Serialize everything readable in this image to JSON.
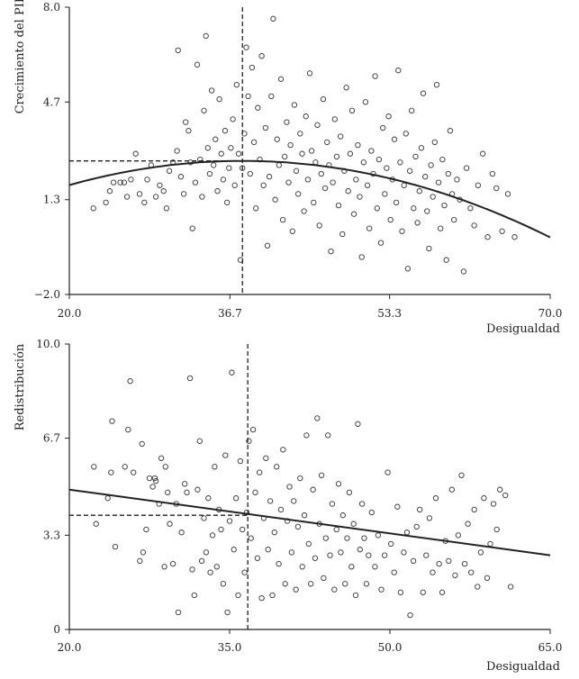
{
  "chart_data": [
    {
      "type": "scatter",
      "xlabel": "Desigualdad",
      "ylabel": "Crecimiento del PIB",
      "xlim": [
        20.0,
        70.0
      ],
      "ylim": [
        -2.0,
        8.0
      ],
      "xticks": [
        20.0,
        36.7,
        53.3,
        70.0
      ],
      "xtick_labels": [
        "20.0",
        "36.7",
        "53.3",
        "70.0"
      ],
      "yticks": [
        -2.0,
        1.3,
        4.7,
        8.0
      ],
      "ytick_labels": [
        "−2.0",
        "1.3",
        "4.7",
        "8.0"
      ],
      "fit": {
        "kind": "quadratic",
        "peak_x": 38.0,
        "peak_y": 2.65,
        "curvature": -0.0026
      },
      "reference": {
        "x": 38.0,
        "y": 2.65
      },
      "points": [
        [
          22.5,
          1.0
        ],
        [
          23.8,
          1.2
        ],
        [
          24.2,
          1.6
        ],
        [
          24.6,
          1.9
        ],
        [
          25.3,
          1.9
        ],
        [
          25.7,
          1.9
        ],
        [
          26.0,
          1.4
        ],
        [
          26.4,
          2.0
        ],
        [
          26.9,
          2.9
        ],
        [
          27.3,
          1.5
        ],
        [
          27.8,
          1.2
        ],
        [
          28.1,
          2.0
        ],
        [
          28.5,
          2.5
        ],
        [
          29.0,
          1.4
        ],
        [
          29.4,
          1.8
        ],
        [
          29.8,
          1.6
        ],
        [
          30.1,
          1.0
        ],
        [
          30.4,
          2.3
        ],
        [
          30.8,
          2.6
        ],
        [
          31.2,
          3.0
        ],
        [
          31.3,
          6.5
        ],
        [
          31.6,
          2.1
        ],
        [
          31.9,
          1.5
        ],
        [
          32.1,
          4.0
        ],
        [
          32.4,
          3.7
        ],
        [
          32.6,
          2.6
        ],
        [
          32.8,
          0.3
        ],
        [
          33.1,
          1.9
        ],
        [
          33.3,
          6.0
        ],
        [
          33.6,
          2.7
        ],
        [
          33.8,
          1.4
        ],
        [
          34.0,
          4.4
        ],
        [
          34.2,
          7.0
        ],
        [
          34.4,
          3.1
        ],
        [
          34.6,
          2.2
        ],
        [
          34.8,
          5.1
        ],
        [
          35.0,
          2.5
        ],
        [
          35.2,
          3.4
        ],
        [
          35.4,
          1.6
        ],
        [
          35.6,
          4.8
        ],
        [
          35.8,
          2.9
        ],
        [
          36.0,
          2.0
        ],
        [
          36.2,
          3.7
        ],
        [
          36.4,
          1.2
        ],
        [
          36.6,
          2.4
        ],
        [
          36.8,
          3.1
        ],
        [
          37.0,
          4.1
        ],
        [
          37.2,
          1.8
        ],
        [
          37.4,
          5.3
        ],
        [
          37.6,
          2.9
        ],
        [
          37.8,
          -0.8
        ],
        [
          38.0,
          2.4
        ],
        [
          38.2,
          3.6
        ],
        [
          38.4,
          6.6
        ],
        [
          38.6,
          4.9
        ],
        [
          38.8,
          2.2
        ],
        [
          39.0,
          5.9
        ],
        [
          39.2,
          3.3
        ],
        [
          39.4,
          1.0
        ],
        [
          39.6,
          4.5
        ],
        [
          39.8,
          2.7
        ],
        [
          40.0,
          6.3
        ],
        [
          40.2,
          1.8
        ],
        [
          40.4,
          3.8
        ],
        [
          40.6,
          -0.3
        ],
        [
          40.8,
          2.1
        ],
        [
          41.0,
          4.9
        ],
        [
          41.2,
          7.6
        ],
        [
          41.4,
          1.3
        ],
        [
          41.6,
          3.4
        ],
        [
          41.8,
          2.5
        ],
        [
          42.0,
          5.5
        ],
        [
          42.2,
          0.6
        ],
        [
          42.4,
          2.8
        ],
        [
          42.6,
          4.0
        ],
        [
          42.8,
          1.9
        ],
        [
          43.0,
          3.2
        ],
        [
          43.2,
          0.2
        ],
        [
          43.4,
          4.6
        ],
        [
          43.6,
          2.3
        ],
        [
          43.8,
          1.5
        ],
        [
          44.0,
          3.6
        ],
        [
          44.2,
          2.9
        ],
        [
          44.4,
          0.9
        ],
        [
          44.6,
          4.2
        ],
        [
          44.8,
          2.0
        ],
        [
          45.0,
          5.7
        ],
        [
          45.2,
          3.0
        ],
        [
          45.4,
          1.2
        ],
        [
          45.6,
          2.6
        ],
        [
          45.8,
          3.9
        ],
        [
          46.0,
          0.4
        ],
        [
          46.2,
          2.2
        ],
        [
          46.4,
          4.8
        ],
        [
          46.6,
          1.7
        ],
        [
          46.8,
          3.3
        ],
        [
          47.0,
          2.5
        ],
        [
          47.2,
          -0.5
        ],
        [
          47.4,
          1.9
        ],
        [
          47.6,
          4.1
        ],
        [
          47.8,
          2.8
        ],
        [
          48.0,
          1.1
        ],
        [
          48.2,
          3.5
        ],
        [
          48.4,
          0.1
        ],
        [
          48.6,
          2.3
        ],
        [
          48.8,
          5.2
        ],
        [
          49.0,
          1.6
        ],
        [
          49.2,
          2.9
        ],
        [
          49.4,
          4.4
        ],
        [
          49.6,
          0.8
        ],
        [
          49.8,
          2.0
        ],
        [
          50.0,
          3.2
        ],
        [
          50.2,
          1.4
        ],
        [
          50.4,
          -0.7
        ],
        [
          50.6,
          2.6
        ],
        [
          50.8,
          4.7
        ],
        [
          51.0,
          1.8
        ],
        [
          51.2,
          0.3
        ],
        [
          51.4,
          3.0
        ],
        [
          51.6,
          2.2
        ],
        [
          51.8,
          5.6
        ],
        [
          52.0,
          1.0
        ],
        [
          52.2,
          2.7
        ],
        [
          52.4,
          -0.2
        ],
        [
          52.6,
          3.8
        ],
        [
          52.8,
          1.5
        ],
        [
          53.0,
          2.4
        ],
        [
          53.2,
          4.2
        ],
        [
          53.4,
          0.6
        ],
        [
          53.6,
          2.0
        ],
        [
          53.8,
          3.4
        ],
        [
          54.0,
          1.2
        ],
        [
          54.2,
          5.8
        ],
        [
          54.4,
          2.6
        ],
        [
          54.6,
          0.2
        ],
        [
          54.8,
          1.8
        ],
        [
          55.0,
          3.6
        ],
        [
          55.2,
          -1.1
        ],
        [
          55.4,
          2.3
        ],
        [
          55.6,
          4.4
        ],
        [
          55.8,
          1.0
        ],
        [
          56.0,
          2.8
        ],
        [
          56.2,
          0.5
        ],
        [
          56.4,
          1.6
        ],
        [
          56.6,
          3.1
        ],
        [
          56.8,
          5.0
        ],
        [
          57.0,
          2.1
        ],
        [
          57.2,
          0.9
        ],
        [
          57.4,
          -0.4
        ],
        [
          57.6,
          2.5
        ],
        [
          57.8,
          1.4
        ],
        [
          58.0,
          3.3
        ],
        [
          58.2,
          5.3
        ],
        [
          58.4,
          1.9
        ],
        [
          58.6,
          0.3
        ],
        [
          58.8,
          2.7
        ],
        [
          59.0,
          1.1
        ],
        [
          59.2,
          -0.8
        ],
        [
          59.4,
          2.2
        ],
        [
          59.6,
          3.7
        ],
        [
          59.8,
          1.5
        ],
        [
          60.0,
          0.6
        ],
        [
          60.3,
          2.0
        ],
        [
          60.6,
          1.3
        ],
        [
          61.0,
          -1.2
        ],
        [
          61.3,
          2.4
        ],
        [
          61.7,
          1.0
        ],
        [
          62.1,
          0.4
        ],
        [
          62.5,
          1.8
        ],
        [
          63.0,
          2.9
        ],
        [
          63.5,
          0.0
        ],
        [
          64.0,
          2.2
        ],
        [
          64.4,
          1.7
        ],
        [
          65.0,
          0.2
        ],
        [
          65.6,
          1.5
        ],
        [
          66.3,
          0.0
        ]
      ]
    },
    {
      "type": "scatter",
      "xlabel": "Desigualdad",
      "ylabel": "Redistribución",
      "xlim": [
        20.0,
        65.0
      ],
      "ylim": [
        0,
        10.0
      ],
      "xticks": [
        20.0,
        35.0,
        50.0,
        65.0
      ],
      "xtick_labels": [
        "20.0",
        "35.0",
        "50.0",
        "65.0"
      ],
      "yticks": [
        0,
        3.3,
        6.7,
        10.0
      ],
      "ytick_labels": [
        "0",
        "3.3",
        "6.7",
        "10.0"
      ],
      "fit": {
        "kind": "linear",
        "x0": 20.0,
        "y0": 4.9,
        "x1": 65.0,
        "y1": 2.6
      },
      "reference": {
        "x": 36.7,
        "y": 4.0
      },
      "points": [
        [
          22.3,
          5.7
        ],
        [
          22.5,
          3.7
        ],
        [
          23.6,
          4.6
        ],
        [
          23.9,
          5.5
        ],
        [
          24.0,
          7.3
        ],
        [
          24.3,
          2.9
        ],
        [
          25.2,
          5.7
        ],
        [
          25.5,
          7.0
        ],
        [
          25.7,
          8.7
        ],
        [
          26.0,
          5.5
        ],
        [
          26.6,
          2.4
        ],
        [
          26.8,
          6.5
        ],
        [
          26.9,
          2.7
        ],
        [
          27.2,
          3.5
        ],
        [
          27.5,
          5.3
        ],
        [
          27.8,
          5.0
        ],
        [
          28.0,
          5.3
        ],
        [
          28.1,
          5.2
        ],
        [
          28.4,
          4.4
        ],
        [
          28.6,
          6.0
        ],
        [
          28.9,
          2.2
        ],
        [
          29.0,
          5.7
        ],
        [
          29.2,
          4.8
        ],
        [
          29.4,
          3.7
        ],
        [
          29.7,
          2.3
        ],
        [
          30.0,
          4.4
        ],
        [
          30.2,
          0.6
        ],
        [
          30.5,
          3.4
        ],
        [
          30.8,
          5.1
        ],
        [
          31.0,
          4.8
        ],
        [
          31.3,
          8.8
        ],
        [
          31.5,
          2.1
        ],
        [
          31.7,
          1.2
        ],
        [
          32.0,
          4.9
        ],
        [
          32.2,
          6.6
        ],
        [
          32.4,
          2.4
        ],
        [
          32.6,
          3.9
        ],
        [
          32.8,
          2.7
        ],
        [
          33.0,
          4.6
        ],
        [
          33.2,
          2.0
        ],
        [
          33.4,
          3.3
        ],
        [
          33.6,
          5.7
        ],
        [
          33.8,
          2.2
        ],
        [
          34.0,
          4.2
        ],
        [
          34.2,
          3.5
        ],
        [
          34.4,
          1.6
        ],
        [
          34.6,
          6.1
        ],
        [
          34.8,
          0.6
        ],
        [
          35.0,
          3.8
        ],
        [
          35.2,
          9.0
        ],
        [
          35.4,
          2.8
        ],
        [
          35.6,
          4.6
        ],
        [
          35.8,
          1.2
        ],
        [
          36.0,
          5.9
        ],
        [
          36.2,
          3.5
        ],
        [
          36.4,
          2.0
        ],
        [
          36.6,
          4.1
        ],
        [
          36.8,
          6.6
        ],
        [
          37.0,
          3.2
        ],
        [
          37.2,
          7.0
        ],
        [
          37.4,
          4.8
        ],
        [
          37.6,
          2.5
        ],
        [
          37.8,
          5.5
        ],
        [
          38.0,
          1.1
        ],
        [
          38.2,
          3.9
        ],
        [
          38.4,
          6.0
        ],
        [
          38.6,
          2.8
        ],
        [
          38.8,
          4.5
        ],
        [
          39.0,
          1.2
        ],
        [
          39.2,
          3.4
        ],
        [
          39.4,
          5.7
        ],
        [
          39.6,
          2.3
        ],
        [
          39.8,
          4.2
        ],
        [
          40.0,
          6.3
        ],
        [
          40.2,
          1.6
        ],
        [
          40.4,
          3.8
        ],
        [
          40.6,
          5.0
        ],
        [
          40.8,
          2.7
        ],
        [
          41.0,
          4.5
        ],
        [
          41.2,
          1.4
        ],
        [
          41.4,
          3.6
        ],
        [
          41.6,
          5.3
        ],
        [
          41.8,
          2.2
        ],
        [
          42.0,
          4.0
        ],
        [
          42.2,
          6.8
        ],
        [
          42.4,
          3.0
        ],
        [
          42.6,
          1.6
        ],
        [
          42.8,
          4.9
        ],
        [
          43.0,
          2.5
        ],
        [
          43.2,
          7.4
        ],
        [
          43.4,
          3.7
        ],
        [
          43.6,
          5.4
        ],
        [
          43.8,
          1.8
        ],
        [
          44.0,
          3.2
        ],
        [
          44.2,
          6.8
        ],
        [
          44.4,
          2.6
        ],
        [
          44.6,
          4.4
        ],
        [
          44.8,
          1.4
        ],
        [
          45.0,
          3.5
        ],
        [
          45.2,
          5.1
        ],
        [
          45.4,
          2.7
        ],
        [
          45.6,
          4.0
        ],
        [
          45.8,
          1.6
        ],
        [
          46.0,
          3.2
        ],
        [
          46.2,
          4.8
        ],
        [
          46.4,
          2.2
        ],
        [
          46.6,
          3.7
        ],
        [
          46.8,
          1.2
        ],
        [
          47.0,
          7.2
        ],
        [
          47.2,
          2.8
        ],
        [
          47.4,
          4.4
        ],
        [
          47.6,
          3.2
        ],
        [
          47.8,
          1.6
        ],
        [
          48.0,
          2.6
        ],
        [
          48.3,
          4.1
        ],
        [
          48.6,
          2.2
        ],
        [
          48.9,
          3.3
        ],
        [
          49.2,
          1.4
        ],
        [
          49.5,
          2.6
        ],
        [
          49.8,
          5.5
        ],
        [
          50.1,
          3.0
        ],
        [
          50.4,
          2.0
        ],
        [
          50.7,
          4.3
        ],
        [
          51.0,
          1.3
        ],
        [
          51.3,
          2.7
        ],
        [
          51.6,
          3.4
        ],
        [
          51.9,
          0.5
        ],
        [
          52.2,
          2.4
        ],
        [
          52.5,
          3.6
        ],
        [
          52.8,
          4.2
        ],
        [
          53.1,
          1.3
        ],
        [
          53.4,
          2.6
        ],
        [
          53.7,
          3.9
        ],
        [
          54.0,
          2.0
        ],
        [
          54.3,
          4.6
        ],
        [
          54.6,
          2.3
        ],
        [
          54.9,
          1.3
        ],
        [
          55.2,
          3.1
        ],
        [
          55.5,
          2.4
        ],
        [
          55.8,
          4.9
        ],
        [
          56.1,
          1.9
        ],
        [
          56.4,
          3.3
        ],
        [
          56.7,
          5.4
        ],
        [
          57.0,
          2.3
        ],
        [
          57.3,
          3.7
        ],
        [
          57.6,
          2.0
        ],
        [
          57.9,
          4.2
        ],
        [
          58.2,
          1.5
        ],
        [
          58.5,
          2.7
        ],
        [
          58.8,
          4.6
        ],
        [
          59.1,
          1.8
        ],
        [
          59.4,
          3.0
        ],
        [
          59.7,
          4.4
        ],
        [
          60.0,
          3.5
        ],
        [
          60.3,
          4.9
        ],
        [
          60.8,
          4.7
        ],
        [
          61.3,
          1.5
        ]
      ]
    }
  ]
}
